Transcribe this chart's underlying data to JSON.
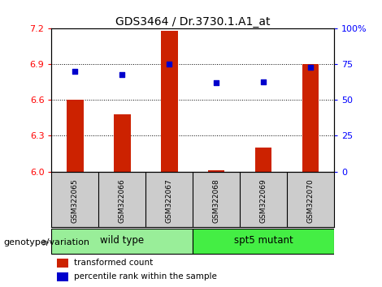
{
  "title": "GDS3464 / Dr.3730.1.A1_at",
  "samples": [
    "GSM322065",
    "GSM322066",
    "GSM322067",
    "GSM322068",
    "GSM322069",
    "GSM322070"
  ],
  "transformed_count": [
    6.6,
    6.48,
    7.18,
    6.01,
    6.2,
    6.9
  ],
  "percentile_rank": [
    70,
    68,
    75,
    62,
    63,
    73
  ],
  "ylim_left": [
    6.0,
    7.2
  ],
  "ylim_right": [
    0,
    100
  ],
  "yticks_left": [
    6.0,
    6.3,
    6.6,
    6.9,
    7.2
  ],
  "yticks_right": [
    0,
    25,
    50,
    75,
    100
  ],
  "ytick_labels_right": [
    "0",
    "25",
    "50",
    "75",
    "100%"
  ],
  "bar_color": "#CC2200",
  "dot_color": "#0000CC",
  "groups": [
    {
      "label": "wild type",
      "indices": [
        0,
        1,
        2
      ],
      "color": "#99EE99"
    },
    {
      "label": "spt5 mutant",
      "indices": [
        3,
        4,
        5
      ],
      "color": "#44EE44"
    }
  ],
  "group_label": "genotype/variation",
  "legend_bar": "transformed count",
  "legend_dot": "percentile rank within the sample",
  "background_color": "#ffffff",
  "label_bg": "#CCCCCC",
  "bar_width": 0.35
}
